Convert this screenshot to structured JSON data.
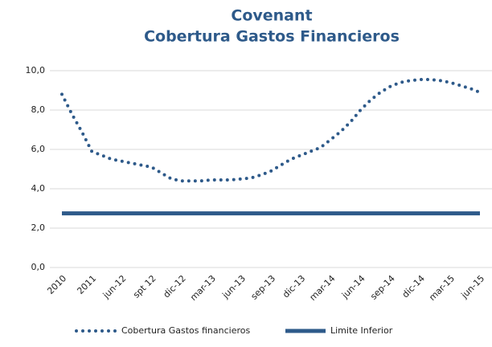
{
  "chart_data": {
    "type": "line",
    "title": [
      "Covenant",
      "Cobertura Gastos Financieros"
    ],
    "categories": [
      "2010",
      null,
      null,
      "2011",
      null,
      null,
      "jun-12",
      null,
      null,
      "spt 12",
      null,
      null,
      "dic-12",
      null,
      null,
      "mar-13",
      null,
      null,
      "jun-13",
      null,
      null,
      "sep-13",
      null,
      null,
      "dic-13",
      null,
      null,
      "mar-14",
      null,
      null,
      "jun-14",
      null,
      null,
      "sep-14",
      null,
      null,
      "dic-14",
      null,
      null,
      "mar-15",
      null,
      null,
      "jun-15"
    ],
    "series": [
      {
        "name": "Cobertura Gastos financieros",
        "color": "#2e5a8a",
        "style": "dotted",
        "values": [
          8.8,
          7.8,
          6.9,
          5.9,
          5.7,
          5.5,
          5.4,
          5.3,
          5.2,
          5.1,
          4.8,
          4.5,
          4.4,
          4.4,
          4.4,
          4.45,
          4.45,
          4.45,
          4.5,
          4.55,
          4.7,
          4.9,
          5.2,
          5.5,
          5.7,
          5.9,
          6.1,
          6.5,
          6.9,
          7.4,
          8.0,
          8.5,
          8.9,
          9.2,
          9.4,
          9.5,
          9.55,
          9.55,
          9.5,
          9.4,
          9.25,
          9.1,
          8.9
        ]
      },
      {
        "name": "Limite Inferior",
        "color": "#2e5a8a",
        "style": "solid",
        "values": [
          2.75,
          2.75,
          2.75,
          2.75,
          2.75,
          2.75,
          2.75,
          2.75,
          2.75,
          2.75,
          2.75,
          2.75,
          2.75,
          2.75,
          2.75,
          2.75,
          2.75,
          2.75,
          2.75,
          2.75,
          2.75,
          2.75,
          2.75,
          2.75,
          2.75,
          2.75,
          2.75,
          2.75,
          2.75,
          2.75,
          2.75,
          2.75,
          2.75,
          2.75,
          2.75,
          2.75,
          2.75,
          2.75,
          2.75,
          2.75,
          2.75,
          2.75,
          2.75
        ]
      }
    ],
    "ylim": [
      0,
      10
    ],
    "yticks": [
      {
        "value": 0,
        "label": "0,0"
      },
      {
        "value": 2,
        "label": "2,0"
      },
      {
        "value": 4,
        "label": "4,0"
      },
      {
        "value": 6,
        "label": "6,0"
      },
      {
        "value": 8,
        "label": "8,0"
      },
      {
        "value": 10,
        "label": "10,0"
      }
    ],
    "grid": true,
    "legend": "bottom"
  }
}
